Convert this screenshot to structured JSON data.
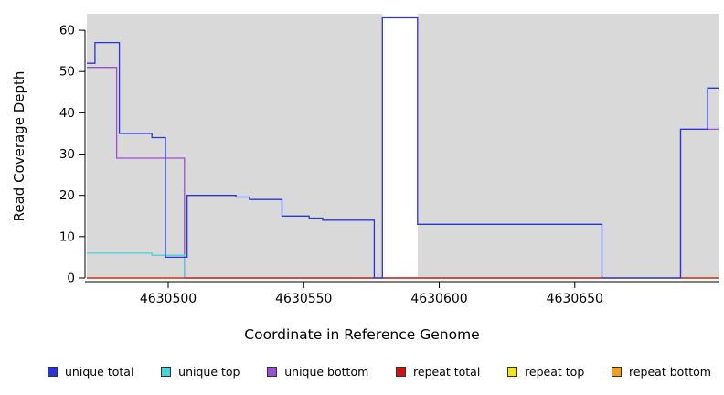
{
  "chart_data": {
    "type": "line",
    "subtype": "step-coverage",
    "title": "",
    "xlabel": "Coordinate in Reference Genome",
    "ylabel": "Read Coverage Depth",
    "xlim": [
      4630470,
      4630703
    ],
    "ylim": [
      0,
      64
    ],
    "x_ticks": [
      4630500,
      4630550,
      4630600,
      4630650
    ],
    "y_ticks": [
      0,
      10,
      20,
      30,
      40,
      50,
      60
    ],
    "plot_bg": "#d9d9d9",
    "grid": false,
    "legend_position": "bottom",
    "gap_region": {
      "x0": 4630579,
      "x1": 4630592,
      "color": "#ffffff"
    },
    "series": [
      {
        "label": "unique total",
        "color": "#2a35d8",
        "points": [
          [
            4630470,
            52
          ],
          [
            4630473,
            57
          ],
          [
            4630482,
            35
          ],
          [
            4630494,
            34
          ],
          [
            4630499,
            5
          ],
          [
            4630507,
            20
          ],
          [
            4630525,
            19.6
          ],
          [
            4630530,
            19
          ],
          [
            4630542,
            15
          ],
          [
            4630552,
            14.5
          ],
          [
            4630557,
            14
          ],
          [
            4630576,
            0
          ],
          [
            4630579,
            63
          ],
          [
            4630592,
            13
          ],
          [
            4630660,
            0
          ],
          [
            4630689,
            36
          ],
          [
            4630699,
            46
          ]
        ]
      },
      {
        "label": "unique top",
        "color": "#45d4d8",
        "points": [
          [
            4630470,
            6
          ],
          [
            4630494,
            5.5
          ],
          [
            4630506,
            0
          ]
        ]
      },
      {
        "label": "unique bottom",
        "color": "#9b4fd1",
        "points": [
          [
            4630470,
            51
          ],
          [
            4630481,
            29
          ],
          [
            4630506,
            0
          ],
          [
            4630689,
            36
          ]
        ]
      },
      {
        "label": "repeat total",
        "color": "#cc1414",
        "points": [
          [
            4630470,
            0
          ]
        ]
      },
      {
        "label": "repeat top",
        "color": "#f2e41f",
        "points": [
          [
            4630470,
            0
          ]
        ]
      },
      {
        "label": "repeat bottom",
        "color": "#f59e1a",
        "points": [
          [
            4630470,
            0
          ]
        ]
      }
    ]
  }
}
